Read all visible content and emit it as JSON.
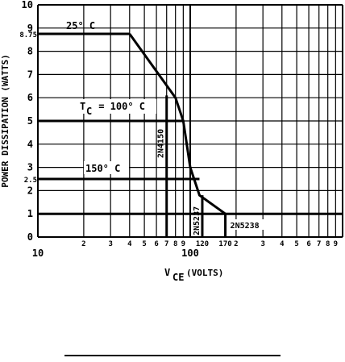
{
  "chart_data": {
    "type": "line",
    "x_scale": "log",
    "y_scale": "linear",
    "xlim": [
      10,
      1000
    ],
    "ylim": [
      0,
      10
    ],
    "ylabel": "POWER DISSIPATION (WATTS)",
    "xlabel_main": "V",
    "xlabel_sub": "CE",
    "xlabel_unit": "(VOLTS)",
    "grid": true,
    "y_ticks": [
      {
        "value": 0,
        "label": "0"
      },
      {
        "value": 1,
        "label": "1"
      },
      {
        "value": 2,
        "label": "2"
      },
      {
        "value": 2.5,
        "label": "2.5"
      },
      {
        "value": 3,
        "label": "3"
      },
      {
        "value": 4,
        "label": "4"
      },
      {
        "value": 5,
        "label": "5"
      },
      {
        "value": 6,
        "label": "6"
      },
      {
        "value": 7,
        "label": "7"
      },
      {
        "value": 8,
        "label": "8"
      },
      {
        "value": 8.75,
        "label": "8.75"
      },
      {
        "value": 9,
        "label": "9"
      },
      {
        "value": 10,
        "label": "10"
      }
    ],
    "x_ticks": [
      {
        "value": 10,
        "label": "10"
      },
      {
        "value": 20,
        "label": "2"
      },
      {
        "value": 30,
        "label": "3"
      },
      {
        "value": 40,
        "label": "4"
      },
      {
        "value": 50,
        "label": "5"
      },
      {
        "value": 60,
        "label": "6"
      },
      {
        "value": 70,
        "label": "7"
      },
      {
        "value": 80,
        "label": "8"
      },
      {
        "value": 90,
        "label": "9"
      },
      {
        "value": 100,
        "label": "100"
      },
      {
        "value": 120,
        "label": "120"
      },
      {
        "value": 170,
        "label": "170"
      },
      {
        "value": 200,
        "label": "2"
      },
      {
        "value": 300,
        "label": "3"
      },
      {
        "value": 400,
        "label": "4"
      },
      {
        "value": 500,
        "label": "5"
      },
      {
        "value": 600,
        "label": "6"
      },
      {
        "value": 700,
        "label": "7"
      },
      {
        "value": 800,
        "label": "8"
      },
      {
        "value": 900,
        "label": "9"
      }
    ],
    "series": [
      {
        "name": "25° C",
        "points": [
          [
            10,
            8.75
          ],
          [
            40,
            8.75
          ]
        ]
      },
      {
        "name": "T_C = 100° C",
        "points": [
          [
            10,
            5
          ],
          [
            90,
            5
          ]
        ]
      },
      {
        "name": "150° C",
        "points": [
          [
            10,
            2.5
          ],
          [
            115,
            2.5
          ]
        ]
      },
      {
        "name": "",
        "points": [
          [
            40,
            8.75
          ],
          [
            80,
            6
          ],
          [
            90,
            5
          ],
          [
            100,
            3
          ],
          [
            115,
            1.8
          ],
          [
            170,
            1
          ]
        ]
      },
      {
        "name": "",
        "points": [
          [
            10,
            1
          ],
          [
            1000,
            1
          ]
        ]
      }
    ],
    "device_limits": [
      {
        "name": "2N4150",
        "x": 70,
        "y_top": 6.1
      },
      {
        "name": "2N5237",
        "x": 120,
        "y_top": 1.8
      },
      {
        "name": "2N5238",
        "x": 170,
        "y_top": 1
      }
    ],
    "annotations": {
      "label_25": "25° C",
      "label_100": "T",
      "label_100_sub": "C",
      "label_100_rest": " = 100° C",
      "label_150": "150° C"
    }
  }
}
